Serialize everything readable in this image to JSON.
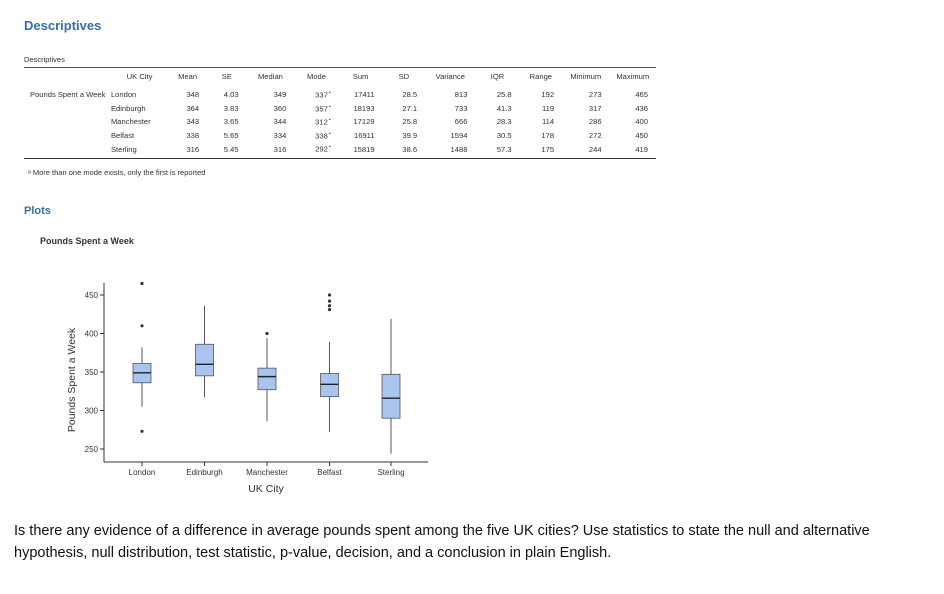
{
  "title": "Descriptives",
  "table": {
    "caption": "Descriptives",
    "columns": [
      "UK City",
      "Mean",
      "SE",
      "Median",
      "Mode",
      "Sum",
      "SD",
      "Variance",
      "IQR",
      "Range",
      "Minimum",
      "Maximum"
    ],
    "variable": "Pounds Spent a Week",
    "rows": [
      {
        "city": "London",
        "mean": "348",
        "se": "4.03",
        "median": "349",
        "mode": "337",
        "sum": "17411",
        "sd": "28.5",
        "variance": "813",
        "iqr": "25.8",
        "range": "192",
        "min": "273",
        "max": "465"
      },
      {
        "city": "Edinburgh",
        "mean": "364",
        "se": "3.83",
        "median": "360",
        "mode": "357",
        "sum": "18193",
        "sd": "27.1",
        "variance": "733",
        "iqr": "41.3",
        "range": "119",
        "min": "317",
        "max": "436"
      },
      {
        "city": "Manchester",
        "mean": "343",
        "se": "3.65",
        "median": "344",
        "mode": "312",
        "sum": "17129",
        "sd": "25.8",
        "variance": "666",
        "iqr": "28.3",
        "range": "114",
        "min": "286",
        "max": "400"
      },
      {
        "city": "Belfast",
        "mean": "338",
        "se": "5.65",
        "median": "334",
        "mode": "338",
        "sum": "16911",
        "sd": "39.9",
        "variance": "1594",
        "iqr": "30.5",
        "range": "178",
        "min": "272",
        "max": "450"
      },
      {
        "city": "Sterling",
        "mean": "316",
        "se": "5.45",
        "median": "316",
        "mode": "292",
        "sum": "15819",
        "sd": "38.6",
        "variance": "1488",
        "iqr": "57.3",
        "range": "175",
        "min": "244",
        "max": "419"
      }
    ],
    "mode_marker": "ᵃ",
    "footnote": "ᵃ More than one mode exists, only the first is reported"
  },
  "plots_heading": "Plots",
  "chart_data": {
    "type": "box",
    "title": "Pounds Spent a Week",
    "xlabel": "UK City",
    "ylabel": "Pounds Spent a Week",
    "ylim": [
      244,
      465
    ],
    "yticks": [
      250,
      300,
      350,
      400,
      450
    ],
    "categories": [
      "London",
      "Edinburgh",
      "Manchester",
      "Belfast",
      "Sterling"
    ],
    "boxes": [
      {
        "name": "London",
        "whisker_low": 305,
        "q1": 336,
        "median": 349,
        "q3": 361,
        "whisker_high": 382,
        "outliers": [
          273,
          410,
          465
        ]
      },
      {
        "name": "Edinburgh",
        "whisker_low": 317,
        "q1": 345,
        "median": 360,
        "q3": 386,
        "whisker_high": 436,
        "outliers": []
      },
      {
        "name": "Manchester",
        "whisker_low": 286,
        "q1": 327,
        "median": 344,
        "q3": 355,
        "whisker_high": 394,
        "outliers": [
          400
        ]
      },
      {
        "name": "Belfast",
        "whisker_low": 272,
        "q1": 318,
        "median": 334,
        "q3": 348,
        "whisker_high": 389,
        "outliers": [
          431,
          436,
          442,
          450
        ]
      },
      {
        "name": "Sterling",
        "whisker_low": 244,
        "q1": 290,
        "median": 316,
        "q3": 347,
        "whisker_high": 419,
        "outliers": []
      }
    ],
    "box_color": "#a9c4ef"
  },
  "question": "Is there any evidence of a difference in average pounds spent among the five UK cities? Use statistics to state the null and alternative hypothesis, null distribution, test statistic, p-value, decision, and a conclusion in plain English."
}
